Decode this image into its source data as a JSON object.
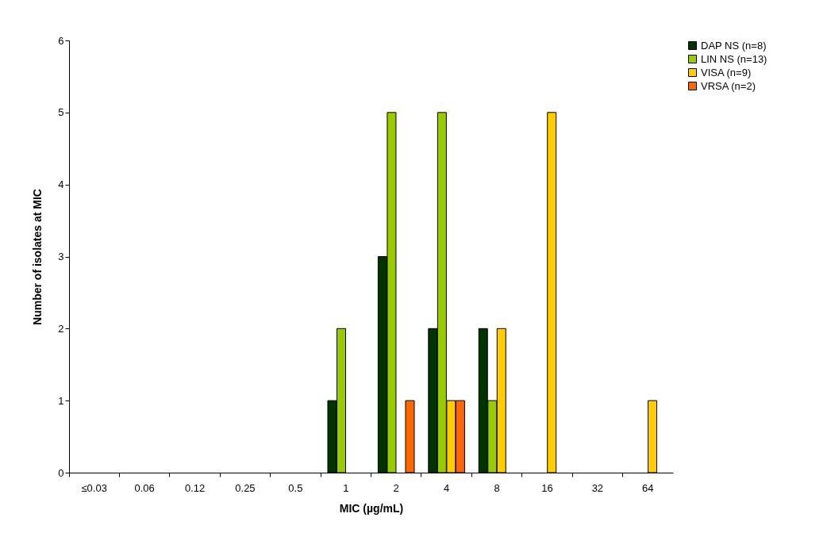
{
  "chart_data": {
    "type": "bar",
    "xlabel": "MIC (µg/mL)",
    "ylabel": "Number of isolates at MIC",
    "categories": [
      "≤0.03",
      "0.06",
      "0.12",
      "0.25",
      "0.5",
      "1",
      "2",
      "4",
      "8",
      "16",
      "32",
      "64"
    ],
    "series": [
      {
        "name": "DAP NS (n=8)",
        "color": "#003300",
        "values": [
          0,
          0,
          0,
          0,
          0,
          1,
          3,
          2,
          2,
          0,
          0,
          0
        ]
      },
      {
        "name": "LIN NS (n=13)",
        "color": "#99cc00",
        "values": [
          0,
          0,
          0,
          0,
          0,
          2,
          5,
          5,
          1,
          0,
          0,
          0
        ]
      },
      {
        "name": "VISA (n=9)",
        "color": "#ffcc00",
        "values": [
          0,
          0,
          0,
          0,
          0,
          0,
          0,
          1,
          2,
          5,
          0,
          1
        ]
      },
      {
        "name": "VRSA (n=2)",
        "color": "#ff6600",
        "values": [
          0,
          0,
          0,
          0,
          0,
          0,
          1,
          1,
          0,
          0,
          0,
          0
        ]
      }
    ],
    "ylim": [
      0,
      6
    ],
    "yticks": [
      0,
      1,
      2,
      3,
      4,
      5,
      6
    ],
    "grid": false,
    "legend": "right"
  }
}
